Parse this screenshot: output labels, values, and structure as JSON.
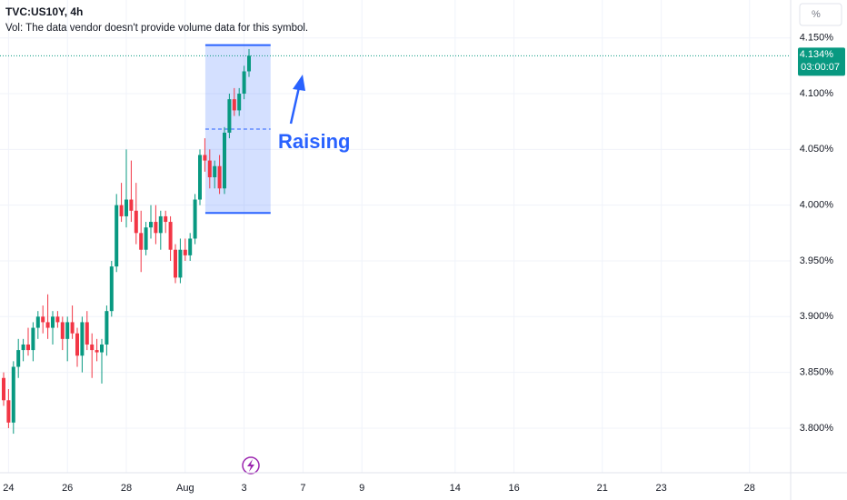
{
  "chart_data": {
    "type": "candlestick",
    "title": "TVC:US10Y, 4h",
    "subtitle": "Vol: The data vendor doesn't provide volume data for this symbol.",
    "unit_button": "%",
    "up_color": "#089981",
    "down_color": "#f23645",
    "grid": true,
    "open": [
      3.845,
      3.825,
      3.805,
      3.855,
      3.87,
      3.875,
      3.87,
      3.89,
      3.9,
      3.895,
      3.89,
      3.9,
      3.895,
      3.88,
      3.895,
      3.885,
      3.865,
      3.895,
      3.875,
      3.87,
      3.868,
      3.875,
      3.905,
      3.945,
      4.0,
      3.99,
      4.005,
      3.995,
      3.975,
      3.96,
      3.98,
      3.985,
      3.975,
      3.99,
      3.985,
      3.96,
      3.935,
      3.96,
      3.955,
      3.97,
      4.005,
      4.045,
      4.04,
      4.025,
      4.035,
      4.015,
      4.065,
      4.095,
      4.085,
      4.1,
      4.12
    ],
    "high": [
      3.85,
      3.835,
      3.86,
      3.88,
      3.88,
      3.89,
      3.895,
      3.905,
      3.91,
      3.92,
      3.905,
      3.905,
      3.9,
      3.9,
      3.91,
      3.89,
      3.9,
      3.905,
      3.885,
      3.88,
      3.88,
      3.91,
      3.95,
      4.01,
      4.02,
      4.05,
      4.04,
      4.02,
      3.995,
      3.985,
      4.0,
      4.0,
      3.995,
      3.995,
      3.99,
      3.965,
      3.97,
      3.97,
      3.975,
      4.01,
      4.05,
      4.06,
      4.05,
      4.04,
      4.045,
      4.07,
      4.1,
      4.105,
      4.105,
      4.125,
      4.14
    ],
    "low": [
      3.82,
      3.8,
      3.795,
      3.845,
      3.86,
      3.865,
      3.86,
      3.88,
      3.885,
      3.88,
      3.875,
      3.89,
      3.87,
      3.86,
      3.88,
      3.855,
      3.85,
      3.87,
      3.845,
      3.86,
      3.84,
      3.865,
      3.9,
      3.94,
      3.985,
      3.98,
      3.985,
      3.965,
      3.94,
      3.955,
      3.97,
      3.965,
      3.96,
      3.975,
      3.95,
      3.93,
      3.93,
      3.95,
      3.95,
      3.965,
      4.0,
      4.03,
      4.015,
      4.015,
      4.01,
      4.01,
      4.06,
      4.08,
      4.08,
      4.095,
      4.115
    ],
    "close": [
      3.825,
      3.805,
      3.855,
      3.87,
      3.875,
      3.87,
      3.89,
      3.9,
      3.895,
      3.89,
      3.9,
      3.895,
      3.88,
      3.895,
      3.885,
      3.865,
      3.895,
      3.875,
      3.87,
      3.868,
      3.875,
      3.905,
      3.945,
      4.0,
      3.99,
      4.005,
      3.995,
      3.975,
      3.96,
      3.98,
      3.985,
      3.975,
      3.99,
      3.985,
      3.96,
      3.935,
      3.96,
      3.955,
      3.97,
      4.005,
      4.045,
      4.04,
      4.025,
      4.035,
      4.015,
      4.065,
      4.095,
      4.085,
      4.1,
      4.12,
      4.134
    ],
    "last_price_label": "4.134%",
    "countdown": "03:00:07",
    "xlim": [
      -0.74,
      160.37
    ],
    "xticks": [
      {
        "value": 1,
        "label": "24"
      },
      {
        "value": 13,
        "label": "26"
      },
      {
        "value": 25,
        "label": "28"
      },
      {
        "value": 37,
        "label": "Aug"
      },
      {
        "value": 49,
        "label": "3"
      },
      {
        "value": 61,
        "label": "7"
      },
      {
        "value": 73,
        "label": "9"
      },
      {
        "value": 92,
        "label": "14"
      },
      {
        "value": 104,
        "label": "16"
      },
      {
        "value": 122,
        "label": "21"
      },
      {
        "value": 134,
        "label": "23"
      },
      {
        "value": 152,
        "label": "28"
      }
    ],
    "ylim": [
      3.76,
      4.184
    ],
    "yticks": [
      {
        "value": 3.8,
        "label": "3.800%"
      },
      {
        "value": 3.85,
        "label": "3.850%"
      },
      {
        "value": 3.9,
        "label": "3.900%"
      },
      {
        "value": 3.95,
        "label": "3.950%"
      },
      {
        "value": 4.0,
        "label": "4.000%"
      },
      {
        "value": 4.05,
        "label": "4.050%"
      },
      {
        "value": 4.1,
        "label": "4.100%"
      },
      {
        "value": 4.15,
        "label": "4.150%"
      }
    ],
    "annotation": {
      "text": "Raising",
      "box_x": [
        41.1,
        54.4
      ],
      "box_y": [
        4.1435,
        3.993
      ],
      "color": "#2962ff"
    }
  }
}
